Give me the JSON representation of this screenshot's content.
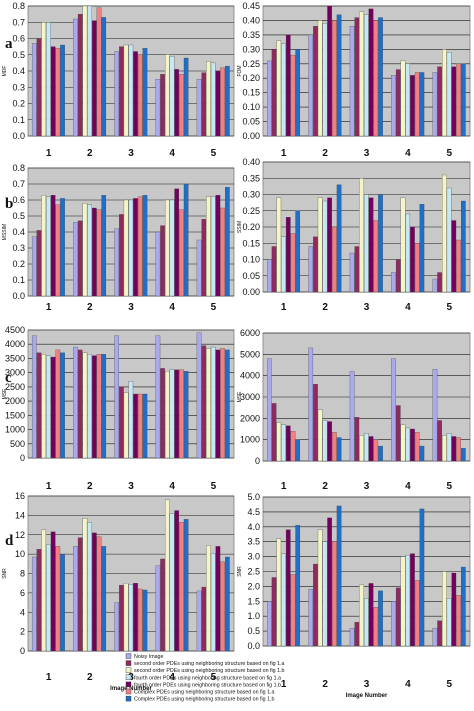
{
  "row_labels": [
    "a",
    "b",
    "c",
    "d"
  ],
  "colors": [
    "#a9a9ee",
    "#8e2a5e",
    "#f4f4c6",
    "#c6e8f4",
    "#73005d",
    "#f28080",
    "#1f6ec7"
  ],
  "legend": [
    "Noisy Image",
    "second order PDEs using neighboring structure based on fig 1.a",
    "second order PDEs using neighboring structure based on fig 1.b",
    "fourth order PDEs using neighboring structure based on fig 1.a",
    "fourth order PDEs using neighboring structure based on fig 1.b",
    "Complex PDEs using neighboring structure based on fig 1.a",
    "Complex PDEs using neighboring structure based on fig 1.b"
  ],
  "chart_data": [
    {
      "type": "bar",
      "ylabel": "MDF",
      "xlabel": "",
      "ylim": [
        0,
        0.8
      ],
      "yticks": [
        0,
        0.1,
        0.2,
        0.3,
        0.4,
        0.5,
        0.6,
        0.7,
        0.8
      ],
      "categories": [
        "1",
        "2",
        "3",
        "4",
        "5"
      ],
      "values": [
        [
          0.57,
          0.6,
          0.7,
          0.7,
          0.55,
          0.54,
          0.56
        ],
        [
          0.72,
          0.75,
          0.8,
          0.8,
          0.71,
          0.79,
          0.73
        ],
        [
          0.52,
          0.55,
          0.56,
          0.56,
          0.52,
          0.5,
          0.54
        ],
        [
          0.35,
          0.38,
          0.5,
          0.49,
          0.41,
          0.38,
          0.48
        ],
        [
          0.35,
          0.39,
          0.46,
          0.45,
          0.4,
          0.42,
          0.43
        ]
      ]
    },
    {
      "type": "bar",
      "ylabel": "FOM",
      "xlabel": "",
      "ylim": [
        0,
        0.45
      ],
      "yticks": [
        0,
        0.05,
        0.1,
        0.15,
        0.2,
        0.25,
        0.3,
        0.35,
        0.4,
        0.45
      ],
      "categories": [
        "1",
        "2",
        "3",
        "4",
        "5"
      ],
      "values": [
        [
          0.26,
          0.3,
          0.33,
          0.32,
          0.35,
          0.28,
          0.3
        ],
        [
          0.35,
          0.38,
          0.4,
          0.39,
          0.45,
          0.4,
          0.42
        ],
        [
          0.38,
          0.41,
          0.43,
          0.42,
          0.44,
          0.4,
          0.41
        ],
        [
          0.21,
          0.23,
          0.26,
          0.25,
          0.21,
          0.22,
          0.22
        ],
        [
          0.22,
          0.24,
          0.3,
          0.29,
          0.24,
          0.25,
          0.25
        ]
      ]
    },
    {
      "type": "bar",
      "ylabel": "MSSIM",
      "xlabel": "",
      "ylim": [
        0,
        0.8
      ],
      "yticks": [
        0,
        0.1,
        0.2,
        0.3,
        0.4,
        0.5,
        0.6,
        0.7,
        0.8
      ],
      "categories": [
        "1",
        "2",
        "3",
        "4",
        "5"
      ],
      "values": [
        [
          0.37,
          0.41,
          0.63,
          0.62,
          0.63,
          0.57,
          0.61
        ],
        [
          0.46,
          0.47,
          0.58,
          0.57,
          0.55,
          0.54,
          0.63
        ],
        [
          0.42,
          0.51,
          0.6,
          0.6,
          0.61,
          0.62,
          0.63
        ],
        [
          0.4,
          0.44,
          0.6,
          0.6,
          0.67,
          0.54,
          0.7
        ],
        [
          0.35,
          0.48,
          0.62,
          0.62,
          0.63,
          0.55,
          0.68
        ]
      ]
    },
    {
      "type": "bar",
      "ylabel": "SSIM",
      "xlabel": "",
      "ylim": [
        0,
        0.4
      ],
      "yticks": [
        0,
        0.05,
        0.1,
        0.15,
        0.2,
        0.25,
        0.3,
        0.35,
        0.4
      ],
      "categories": [
        "1",
        "2",
        "3",
        "4",
        "5"
      ],
      "values": [
        [
          0.1,
          0.14,
          0.29,
          0.17,
          0.23,
          0.18,
          0.25
        ],
        [
          0.14,
          0.17,
          0.29,
          0.28,
          0.29,
          0.2,
          0.33
        ],
        [
          0.12,
          0.14,
          0.35,
          0.3,
          0.29,
          0.22,
          0.3
        ],
        [
          0.06,
          0.1,
          0.29,
          0.24,
          0.2,
          0.15,
          0.27
        ],
        [
          0.04,
          0.06,
          0.36,
          0.32,
          0.22,
          0.16,
          0.28
        ]
      ]
    },
    {
      "type": "bar",
      "ylabel": "MSE",
      "xlabel": "",
      "ylim": [
        0,
        4500
      ],
      "yticks": [
        0,
        500,
        1000,
        1500,
        2000,
        2500,
        3000,
        3500,
        4000,
        4500
      ],
      "categories": [
        "1",
        "2",
        "3",
        "4",
        "5"
      ],
      "values": [
        [
          4300,
          3700,
          3650,
          3600,
          3550,
          3800,
          3700
        ],
        [
          3900,
          3800,
          3700,
          3650,
          3600,
          3650,
          3650
        ],
        [
          4300,
          2500,
          2300,
          2700,
          2250,
          2250,
          2250
        ],
        [
          4300,
          3150,
          3050,
          3100,
          3100,
          3100,
          3050
        ],
        [
          4400,
          3950,
          3850,
          3900,
          3800,
          3850,
          3800
        ]
      ]
    },
    {
      "type": "bar",
      "ylabel": "MSE",
      "xlabel": "",
      "ylim": [
        0,
        6000
      ],
      "yticks": [
        0,
        1000,
        2000,
        3000,
        4000,
        5000,
        6000
      ],
      "categories": [
        "1",
        "2",
        "3",
        "4",
        "5"
      ],
      "values": [
        [
          4800,
          2700,
          1800,
          1700,
          1650,
          1400,
          1000
        ],
        [
          5300,
          3600,
          2400,
          1900,
          1850,
          1350,
          1100
        ],
        [
          4200,
          2050,
          1200,
          1300,
          1150,
          1000,
          700
        ],
        [
          4800,
          2600,
          1700,
          1550,
          1500,
          1350,
          700
        ],
        [
          4300,
          1900,
          1200,
          1300,
          1150,
          1100,
          600
        ]
      ]
    },
    {
      "type": "bar",
      "ylabel": "SNR",
      "xlabel": "Image Number",
      "ylim": [
        0,
        16
      ],
      "yticks": [
        0,
        2,
        4,
        6,
        8,
        10,
        12,
        14,
        16
      ],
      "categories": [
        "1",
        "2",
        "3",
        "4",
        "5"
      ],
      "values": [
        [
          9.7,
          10.5,
          12.5,
          11,
          12.3,
          10.8,
          10
        ],
        [
          10.8,
          11.7,
          13.7,
          13.3,
          12.2,
          11.8,
          10.8
        ],
        [
          5,
          6.8,
          7,
          6.9,
          7,
          6.4,
          6.3
        ],
        [
          8.8,
          9.5,
          15.6,
          14.2,
          14.5,
          13.3,
          13.6
        ],
        [
          6.2,
          6.6,
          10.9,
          10.1,
          10.8,
          9.2,
          9.7
        ]
      ]
    },
    {
      "type": "bar",
      "ylabel": "SNR",
      "xlabel": "Image Number",
      "ylim": [
        0,
        5
      ],
      "yticks": [
        0,
        0.5,
        1,
        1.5,
        2,
        2.5,
        3,
        3.5,
        4,
        4.5,
        5
      ],
      "categories": [
        "1",
        "2",
        "3",
        "4",
        "5"
      ],
      "values": [
        [
          1.5,
          2.3,
          3.6,
          3.1,
          3.9,
          2.4,
          4.05
        ],
        [
          1.9,
          2.75,
          3.9,
          3.5,
          4.3,
          3.5,
          4.7
        ],
        [
          0.6,
          0.8,
          2.05,
          1.6,
          2.1,
          1.3,
          1.85
        ],
        [
          1.5,
          1.95,
          3,
          3.05,
          3.1,
          2.2,
          4.6
        ],
        [
          0.6,
          0.85,
          2.5,
          1.6,
          2.45,
          1.7,
          2.65
        ]
      ]
    }
  ]
}
